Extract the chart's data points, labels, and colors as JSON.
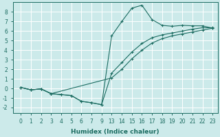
{
  "xlabel": "Humidex (Indice chaleur)",
  "background_color": "#cceaea",
  "grid_color": "#ffffff",
  "line_color": "#1a6b60",
  "xtick_labels": [
    "0",
    "1",
    "2",
    "3",
    "4",
    "5",
    "6",
    "7",
    "9",
    "13",
    "14",
    "15",
    "16",
    "17",
    "18",
    "19",
    "20",
    "21",
    "22",
    "23"
  ],
  "yticks": [
    -2,
    -1,
    0,
    1,
    2,
    3,
    4,
    5,
    6,
    7,
    8
  ],
  "ylim": [
    -2.6,
    9.0
  ],
  "line1_x": [
    0,
    1,
    2,
    3,
    4,
    5,
    6,
    7,
    8,
    9,
    10,
    11,
    12,
    13,
    14,
    15,
    16,
    17,
    18,
    19
  ],
  "line1_y": [
    0.1,
    -0.15,
    -0.05,
    -0.55,
    -0.65,
    -0.75,
    -1.35,
    -1.5,
    -1.7,
    5.5,
    7.0,
    8.4,
    8.7,
    7.2,
    6.6,
    6.5,
    6.6,
    6.55,
    6.55,
    6.3
  ],
  "line2_x": [
    0,
    1,
    2,
    3,
    4,
    5,
    6,
    7,
    8,
    9,
    10,
    11,
    12,
    13,
    14,
    15,
    16,
    17,
    18,
    19
  ],
  "line2_y": [
    0.1,
    -0.15,
    -0.05,
    -0.55,
    -0.65,
    -0.75,
    -1.35,
    -1.5,
    -1.7,
    1.6,
    2.7,
    3.8,
    4.7,
    5.3,
    5.6,
    5.8,
    6.0,
    6.2,
    6.35,
    6.35
  ],
  "line3_x": [
    0,
    1,
    2,
    3,
    9,
    10,
    11,
    12,
    13,
    14,
    15,
    16,
    17,
    18,
    19
  ],
  "line3_y": [
    0.1,
    -0.15,
    -0.05,
    -0.55,
    1.1,
    2.0,
    3.1,
    4.0,
    4.75,
    5.2,
    5.5,
    5.7,
    5.9,
    6.1,
    6.3
  ]
}
